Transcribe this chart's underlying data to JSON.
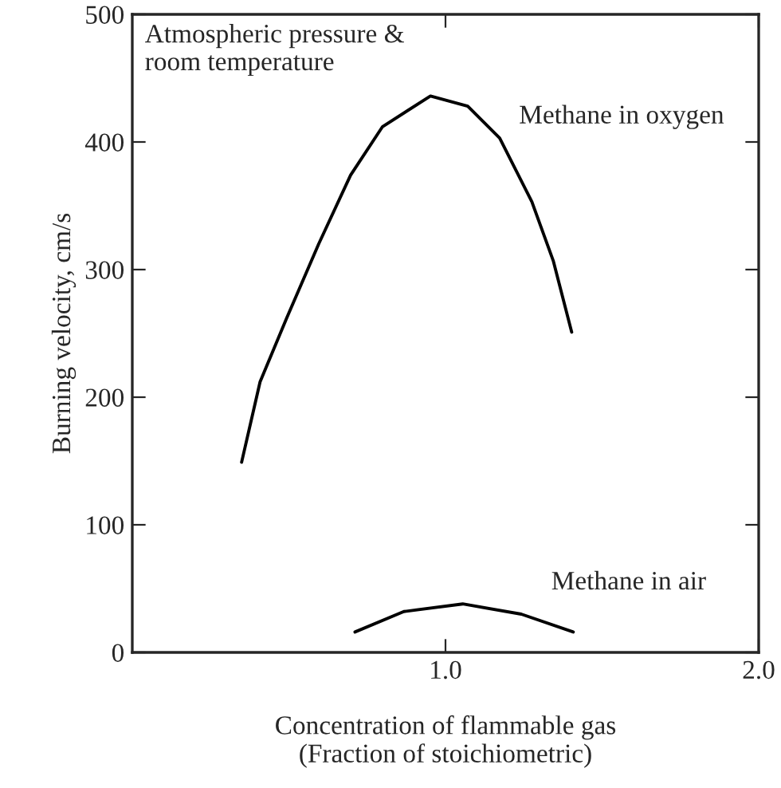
{
  "chart_data": {
    "type": "line",
    "xlabel": "Concentration of flammable gas\n(Fraction of stoichiometric)",
    "ylabel": "Burning velocity, cm/s",
    "annotations": [
      "Atmospheric pressure &\nroom temperature"
    ],
    "series": [
      {
        "name": "Methane in oxygen",
        "color": "#000000",
        "x": [
          0.349,
          0.408,
          0.493,
          0.595,
          0.697,
          0.799,
          0.952,
          1.071,
          1.173,
          1.276,
          1.344,
          1.403
        ],
        "values": [
          149,
          212,
          262,
          320,
          374,
          412,
          436,
          428,
          403,
          353,
          307,
          251
        ]
      },
      {
        "name": "Methane in air",
        "color": "#000000",
        "x": [
          0.711,
          0.867,
          1.055,
          1.242,
          1.408
        ],
        "values": [
          16,
          32,
          38,
          30,
          16
        ]
      }
    ],
    "xlim": [
      0,
      2
    ],
    "xticks": [
      {
        "value": 1,
        "label": "1.0"
      },
      {
        "value": 2,
        "label": "2.0"
      }
    ],
    "ylim": [
      0,
      500
    ],
    "yticks": [
      0,
      100,
      200,
      300,
      400,
      500
    ],
    "grid": false,
    "legend": false,
    "marker": "none",
    "line_style": "solid"
  }
}
